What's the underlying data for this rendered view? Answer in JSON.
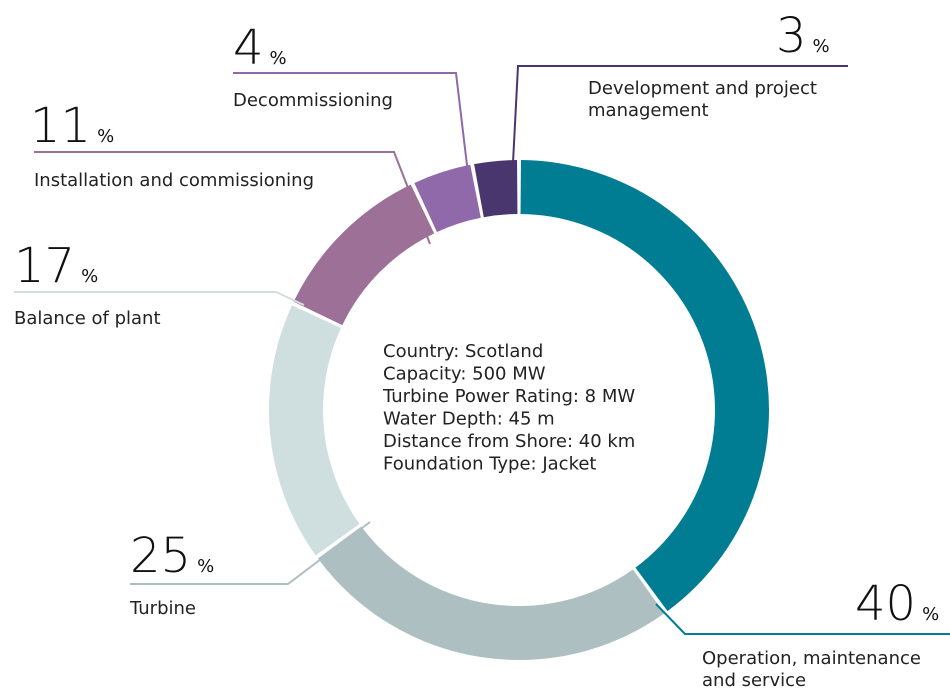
{
  "chart_data": {
    "type": "pie",
    "donut": true,
    "title": "",
    "slices": [
      {
        "category": "Operation, maintenance and service",
        "label_lines": [
          "Operation, maintenance",
          "and service"
        ],
        "value": 40,
        "color": "#007c93"
      },
      {
        "category": "Turbine",
        "label_lines": [
          "Turbine"
        ],
        "value": 25,
        "color": "#adbfc1"
      },
      {
        "category": "Balance of plant",
        "label_lines": [
          "Balance of plant"
        ],
        "value": 17,
        "color": "#cfdedf"
      },
      {
        "category": "Installation and commissioning",
        "label_lines": [
          "Installation and commissioning"
        ],
        "value": 11,
        "color": "#9c7097"
      },
      {
        "category": "Decommissioning",
        "label_lines": [
          "Decommissioning"
        ],
        "value": 4,
        "color": "#8f69aa"
      },
      {
        "category": "Development and project management",
        "label_lines": [
          "Development and project",
          "management"
        ],
        "value": 3,
        "color": "#4a366f"
      }
    ],
    "percent_sign": "%",
    "center_info": [
      "Country: Scotland",
      "Capacity: 500 MW",
      "Turbine Power Rating: 8 MW",
      "Water Depth: 45 m",
      "Distance from Shore: 40 km",
      "Foundation Type: Jacket"
    ]
  }
}
